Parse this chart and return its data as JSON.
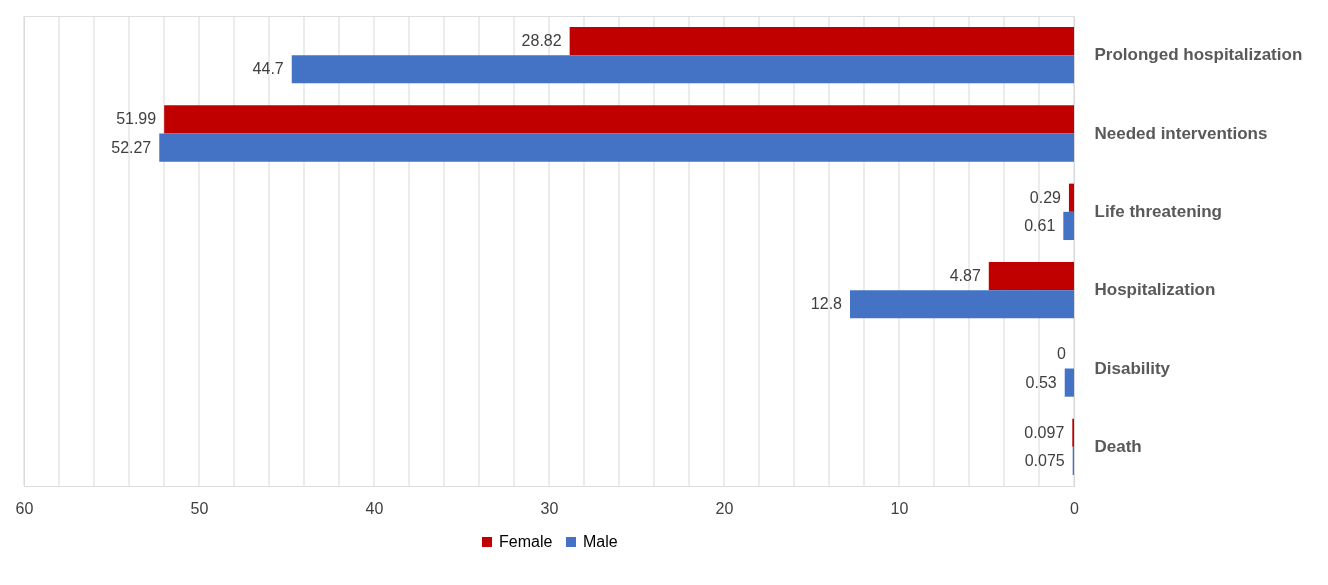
{
  "chart_data": {
    "type": "bar",
    "orientation": "horizontal",
    "categories": [
      "Prolonged hospitalization",
      "Needed interventions",
      "Life threatening",
      "Hospitalization",
      "Disability",
      "Death"
    ],
    "series": [
      {
        "name": "Female",
        "color": "#c00000",
        "values": [
          28.82,
          51.99,
          0.29,
          4.87,
          0,
          0.097
        ]
      },
      {
        "name": "Male",
        "color": "#4472c4",
        "values": [
          44.7,
          52.27,
          0.61,
          12.8,
          0.53,
          0.075
        ]
      }
    ],
    "xlim": [
      60,
      0
    ],
    "xticks": [
      60,
      {
        "value": 58,
        "label": null
      },
      {
        "value": 56,
        "label": null
      },
      {
        "value": 54,
        "label": null
      },
      {
        "value": 52,
        "label": null
      },
      50,
      {
        "value": 48,
        "label": null
      },
      {
        "value": 46,
        "label": null
      },
      {
        "value": 44,
        "label": null
      },
      {
        "value": 42,
        "label": null
      },
      40,
      {
        "value": 38,
        "label": null
      },
      {
        "value": 36,
        "label": null
      },
      {
        "value": 34,
        "label": null
      },
      {
        "value": 32,
        "label": null
      },
      30,
      {
        "value": 28,
        "label": null
      },
      {
        "value": 26,
        "label": null
      },
      {
        "value": 24,
        "label": null
      },
      {
        "value": 22,
        "label": null
      },
      20,
      {
        "value": 18,
        "label": null
      },
      {
        "value": 16,
        "label": null
      },
      {
        "value": 14,
        "label": null
      },
      {
        "value": 12,
        "label": null
      },
      10,
      {
        "value": 8,
        "label": null
      },
      {
        "value": 6,
        "label": null
      },
      {
        "value": 4,
        "label": null
      },
      {
        "value": 2,
        "label": null
      },
      0
    ],
    "grid": "x",
    "data_labels": true,
    "legend": "bottom"
  }
}
